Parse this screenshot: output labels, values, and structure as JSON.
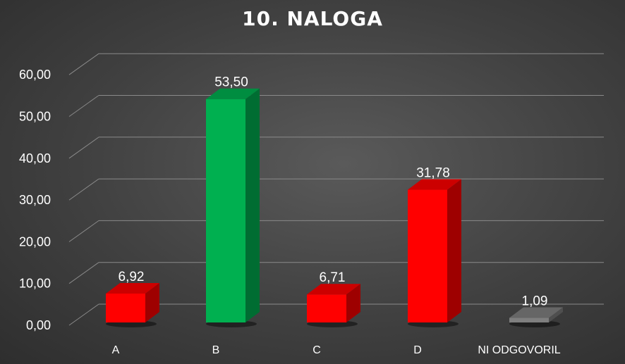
{
  "chart_data": {
    "type": "bar",
    "title": "10. NALOGA",
    "xlabel": "",
    "ylabel": "",
    "categories": [
      "A",
      "B",
      "C",
      "D",
      "NI ODGOVORIL"
    ],
    "values": [
      6.92,
      53.5,
      6.71,
      31.78,
      1.09
    ],
    "value_labels": [
      "6,92",
      "53,50",
      "6,71",
      "31,78",
      "1,09"
    ],
    "bar_colors": [
      "#ff0000",
      "#00b050",
      "#ff0000",
      "#ff0000",
      "#7f7f7f"
    ],
    "ylim": [
      0,
      65
    ],
    "y_ticks": [
      0,
      10,
      20,
      30,
      40,
      50,
      60
    ],
    "y_tick_labels": [
      "0,00",
      "10,00",
      "20,00",
      "30,00",
      "40,00",
      "50,00",
      "60,00"
    ],
    "grid": true,
    "legend": "none",
    "style": "3d-column"
  }
}
